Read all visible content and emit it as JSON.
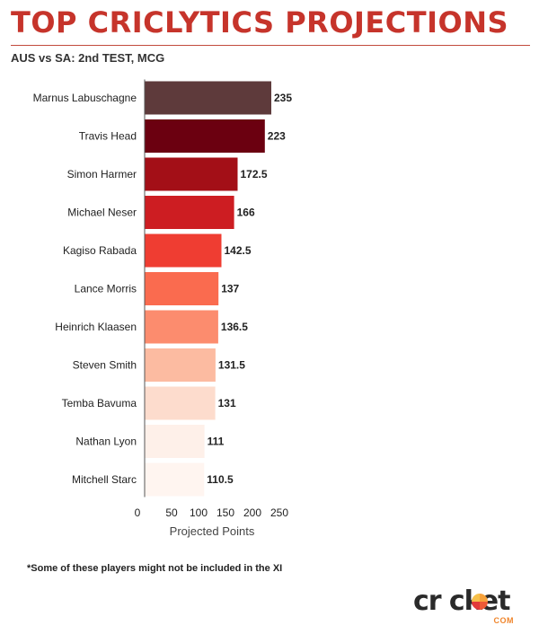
{
  "header": {
    "title": "TOP CRICLYTICS PROJECTIONS",
    "subtitle": "AUS vs SA: 2nd TEST, MCG"
  },
  "footnote": "*Some of these players might not be included in the XI",
  "logo": {
    "word": "crıcket",
    "tag": "●COM"
  },
  "colors": {
    "title": "#c6342b",
    "bars": [
      "#5e3a3b",
      "#6b0010",
      "#a30f17",
      "#cd1d22",
      "#ef3d32",
      "#fa6b4f",
      "#fc8c6e",
      "#fcbba1",
      "#fddccd",
      "#fef0e9",
      "#fff5f0"
    ]
  },
  "chart_data": {
    "type": "bar",
    "orientation": "horizontal",
    "categories": [
      "Marnus Labuschagne",
      "Travis Head",
      "Simon Harmer",
      "Michael Neser",
      "Kagiso Rabada",
      "Lance Morris",
      "Heinrich Klaasen",
      "Steven Smith",
      "Temba Bavuma",
      "Nathan Lyon",
      "Mitchell Starc"
    ],
    "values": [
      235,
      223,
      172.5,
      166,
      142.5,
      137,
      136.5,
      131.5,
      131,
      111,
      110.5
    ],
    "value_labels": [
      "235",
      "223",
      "172.5",
      "166",
      "142.5",
      "137",
      "136.5",
      "131.5",
      "131",
      "111",
      "110.5"
    ],
    "xlabel": "Projected Points",
    "ylabel": "",
    "xlim": [
      0,
      250
    ],
    "xticks": [
      "0",
      "50",
      "100",
      "150",
      "200",
      "250"
    ],
    "grid": false
  }
}
